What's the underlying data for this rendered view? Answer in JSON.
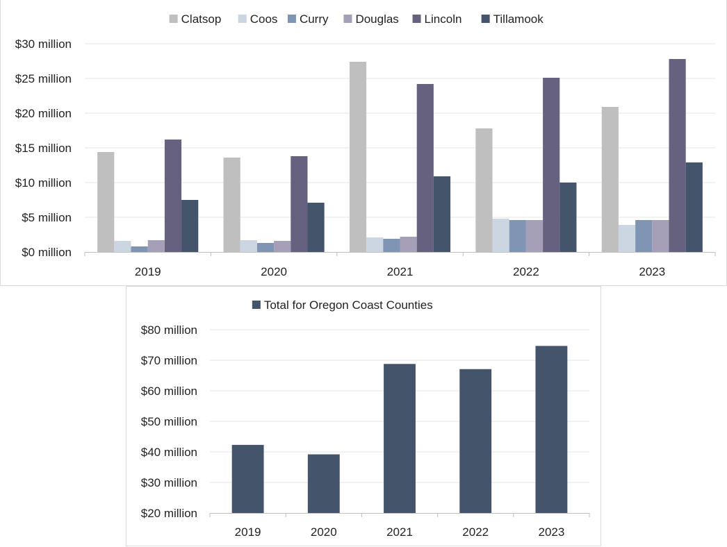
{
  "chart_data": [
    {
      "type": "bar",
      "categories": [
        "2019",
        "2020",
        "2021",
        "2022",
        "2023"
      ],
      "series": [
        {
          "name": "Clatsop",
          "color": "#bfbfbf",
          "values": [
            14.4,
            13.6,
            27.4,
            17.8,
            20.9
          ]
        },
        {
          "name": "Coos",
          "color": "#ccd5e2",
          "values": [
            1.6,
            1.7,
            2.1,
            4.8,
            3.9
          ]
        },
        {
          "name": "Curry",
          "color": "#7f95b3",
          "values": [
            0.8,
            1.3,
            1.9,
            4.6,
            4.6
          ]
        },
        {
          "name": "Douglas",
          "color": "#a5a0b8",
          "values": [
            1.7,
            1.6,
            2.2,
            4.6,
            4.6
          ]
        },
        {
          "name": "Lincoln",
          "color": "#66617f",
          "values": [
            16.2,
            13.8,
            24.2,
            25.1,
            27.8
          ]
        },
        {
          "name": "Tillamook",
          "color": "#44546a",
          "values": [
            7.5,
            7.1,
            10.9,
            10.0,
            12.9
          ]
        }
      ],
      "yticks": [
        "$0 million",
        "$5 million",
        "$10 million",
        "$15 million",
        "$20 million",
        "$25 million",
        "$30 million"
      ],
      "ylim": [
        0,
        30
      ],
      "grid": true,
      "legend_position": "top"
    },
    {
      "type": "bar",
      "categories": [
        "2019",
        "2020",
        "2021",
        "2022",
        "2023"
      ],
      "series": [
        {
          "name": "Total for Oregon Coast Counties",
          "color": "#44546a",
          "values": [
            42.3,
            39.2,
            68.8,
            67.1,
            74.7
          ]
        }
      ],
      "yticks": [
        "$20 million",
        "$30 million",
        "$40 million",
        "$50 million",
        "$60 million",
        "$70 million",
        "$80 million"
      ],
      "ylim": [
        20,
        80
      ],
      "grid": true,
      "legend_position": "top"
    }
  ]
}
